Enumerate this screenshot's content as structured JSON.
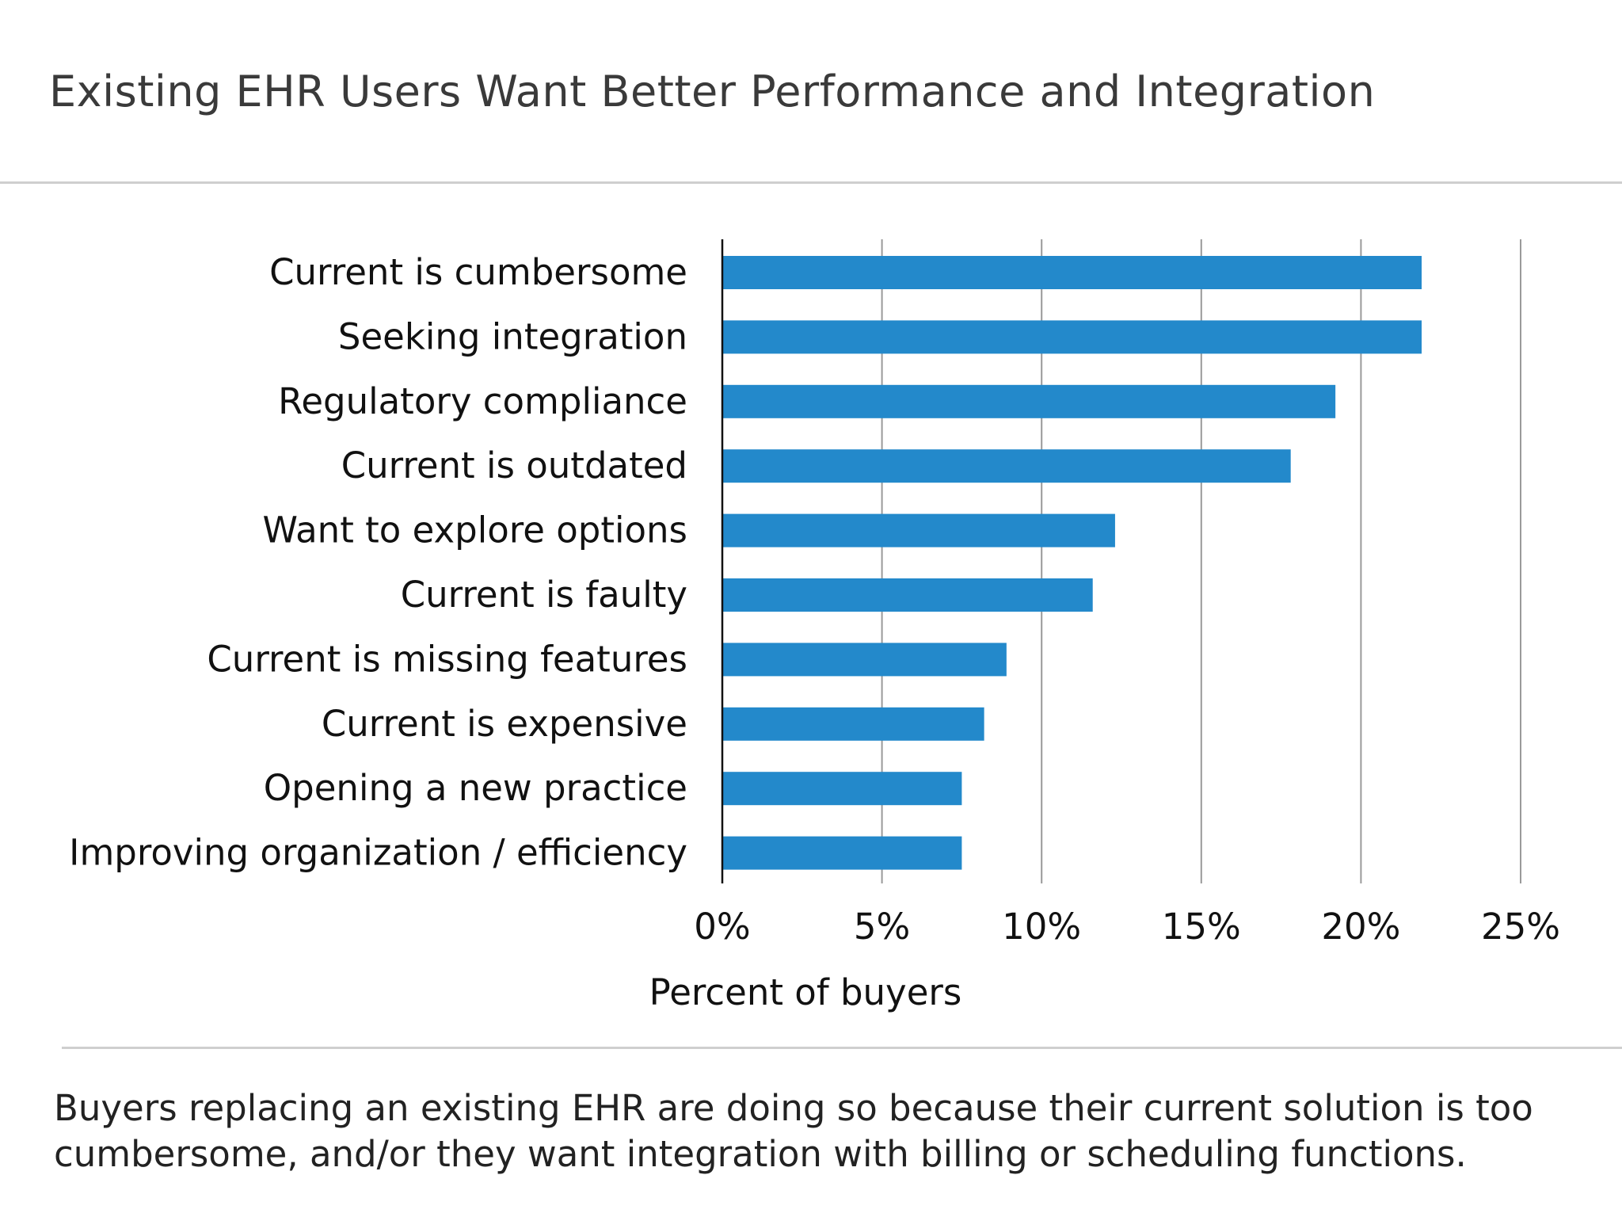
{
  "header": {
    "title": "Existing EHR Users Want Better Performance and Integration"
  },
  "caption": {
    "line1": "Buyers replacing an existing EHR are doing so because their current solution is too",
    "line2": "cumbersome, and/or they want integration with billing or scheduling functions."
  },
  "chart_data": {
    "type": "bar",
    "orientation": "horizontal",
    "title": "Existing EHR Users Want Better Performance and Integration",
    "xlabel": "Percent of buyers",
    "ylabel": "",
    "categories": [
      "Current is cumbersome",
      "Seeking integration",
      "Regulatory compliance",
      "Current is outdated",
      "Want to explore options",
      "Current is faulty",
      "Current is missing features",
      "Current is expensive",
      "Opening a new practice",
      "Improving organization / efficiency"
    ],
    "values": [
      21.9,
      21.9,
      19.2,
      17.8,
      12.3,
      11.6,
      8.9,
      8.2,
      7.5,
      7.5
    ],
    "xlim": [
      0,
      25
    ],
    "xticks": [
      0,
      5,
      10,
      15,
      20,
      25
    ],
    "xtick_labels": [
      "0%",
      "5%",
      "10%",
      "15%",
      "20%",
      "25%"
    ],
    "grid": "vertical",
    "legend": "none",
    "bar_color": "#2389cb",
    "grid_color": "#9a9a9a",
    "axis_color": "#111111"
  }
}
